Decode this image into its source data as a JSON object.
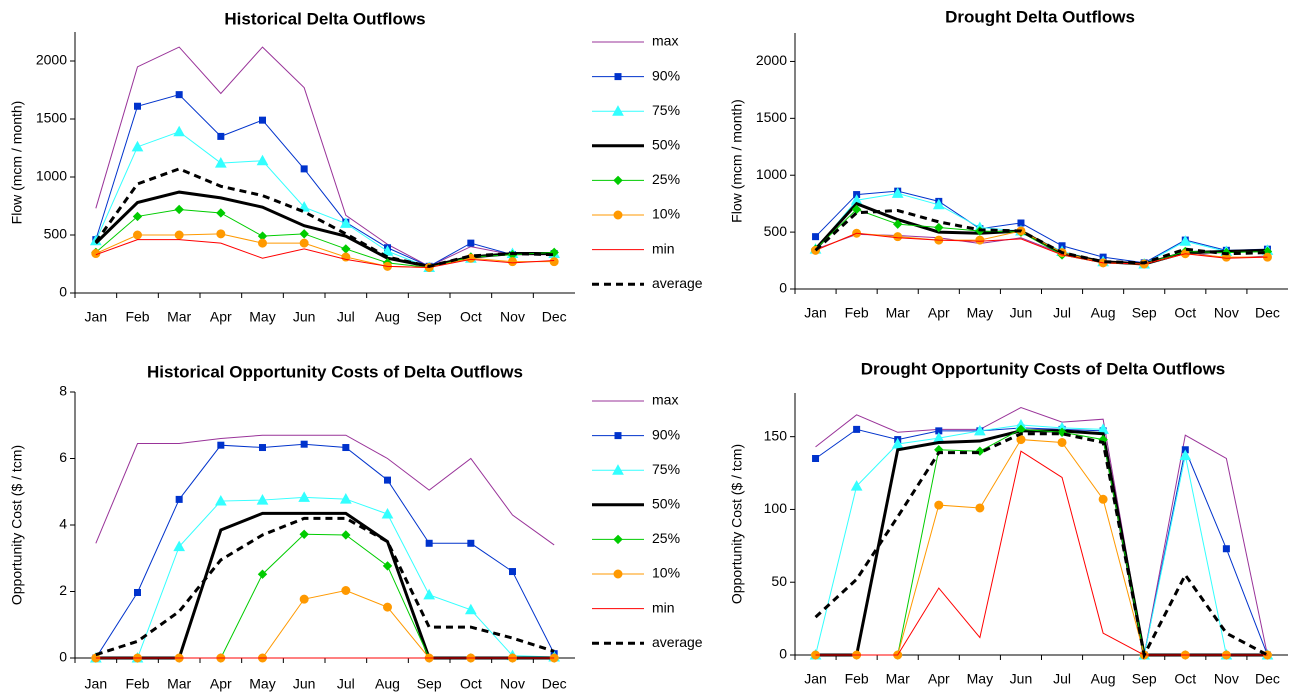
{
  "chart_data": [
    {
      "type": "line",
      "title": "Historical Delta Outflows",
      "y_label": "Flow (mcm / month)",
      "categories": [
        "Jan",
        "Feb",
        "Mar",
        "Apr",
        "May",
        "Jun",
        "Jul",
        "Aug",
        "Sep",
        "Oct",
        "Nov",
        "Dec"
      ],
      "ylim": [
        0,
        2250
      ],
      "yticks": [
        0,
        500,
        1000,
        1500,
        2000
      ],
      "legend": "right",
      "series": [
        {
          "name": "max",
          "color": "#993399",
          "width": 1,
          "values": [
            730,
            1950,
            2120,
            1720,
            2120,
            1770,
            670,
            420,
            230,
            400,
            330,
            330
          ]
        },
        {
          "name": "90%",
          "color": "#0033cc",
          "width": 1,
          "marker": "square",
          "values": [
            460,
            1610,
            1710,
            1350,
            1490,
            1070,
            610,
            390,
            230,
            430,
            330,
            340
          ]
        },
        {
          "name": "75%",
          "color": "#33ffff",
          "width": 1,
          "marker": "triangle",
          "values": [
            450,
            1260,
            1390,
            1120,
            1140,
            740,
            600,
            360,
            220,
            300,
            340,
            340
          ]
        },
        {
          "name": "50%",
          "color": "#000000",
          "width": 3,
          "values": [
            430,
            780,
            870,
            820,
            740,
            580,
            490,
            300,
            230,
            310,
            340,
            340
          ]
        },
        {
          "name": "25%",
          "color": "#00cc00",
          "width": 1,
          "marker": "diamond",
          "values": [
            350,
            660,
            720,
            690,
            490,
            510,
            380,
            260,
            220,
            310,
            330,
            350
          ]
        },
        {
          "name": "10%",
          "color": "#ff9900",
          "width": 1,
          "marker": "circle",
          "values": [
            340,
            500,
            500,
            510,
            430,
            430,
            310,
            230,
            220,
            300,
            270,
            270
          ]
        },
        {
          "name": "min",
          "color": "#ff0000",
          "width": 1,
          "values": [
            330,
            460,
            460,
            430,
            300,
            380,
            290,
            230,
            220,
            290,
            260,
            280
          ]
        },
        {
          "name": "average",
          "color": "#000000",
          "width": 3,
          "dash": true,
          "values": [
            440,
            940,
            1070,
            920,
            840,
            700,
            510,
            310,
            230,
            320,
            340,
            330
          ]
        }
      ]
    },
    {
      "type": "line",
      "title": "Drought Delta Outflows",
      "y_label": "Flow (mcm / month)",
      "categories": [
        "Jan",
        "Feb",
        "Mar",
        "Apr",
        "May",
        "Jun",
        "Jul",
        "Aug",
        "Sep",
        "Oct",
        "Nov",
        "Dec"
      ],
      "ylim": [
        0,
        2250
      ],
      "yticks": [
        0,
        500,
        1000,
        1500,
        2000
      ],
      "series": [
        {
          "color": "#993399",
          "width": 1,
          "values": [
            350,
            480,
            470,
            450,
            400,
            450,
            310,
            230,
            220,
            330,
            270,
            290
          ]
        },
        {
          "color": "#0033cc",
          "width": 1,
          "marker": "square",
          "values": [
            460,
            830,
            860,
            770,
            530,
            580,
            380,
            280,
            230,
            430,
            340,
            350
          ]
        },
        {
          "color": "#33ffff",
          "width": 1,
          "marker": "triangle",
          "values": [
            350,
            780,
            840,
            740,
            540,
            510,
            330,
            240,
            220,
            420,
            330,
            340
          ]
        },
        {
          "color": "#000000",
          "width": 3,
          "values": [
            350,
            750,
            610,
            500,
            490,
            510,
            310,
            240,
            220,
            320,
            330,
            340
          ]
        },
        {
          "color": "#00cc00",
          "width": 1,
          "marker": "diamond",
          "values": [
            350,
            700,
            570,
            540,
            510,
            500,
            300,
            230,
            220,
            330,
            320,
            330
          ]
        },
        {
          "color": "#ff9900",
          "width": 1,
          "marker": "circle",
          "values": [
            340,
            490,
            460,
            430,
            430,
            510,
            320,
            230,
            220,
            310,
            280,
            280
          ]
        },
        {
          "color": "#ff0000",
          "width": 1,
          "values": [
            340,
            490,
            450,
            430,
            420,
            440,
            300,
            230,
            220,
            310,
            270,
            280
          ]
        },
        {
          "color": "#000000",
          "width": 3,
          "dash": true,
          "values": [
            340,
            670,
            690,
            590,
            520,
            510,
            320,
            240,
            230,
            350,
            310,
            320
          ]
        }
      ]
    },
    {
      "type": "line",
      "title": "Historical Opportunity Costs of Delta Outflows",
      "y_label": "Opportunity Cost  ($ / tcm)",
      "categories": [
        "Jan",
        "Feb",
        "Mar",
        "Apr",
        "May",
        "Jun",
        "Jul",
        "Aug",
        "Sep",
        "Oct",
        "Nov",
        "Dec"
      ],
      "ylim": [
        0,
        8
      ],
      "yticks": [
        0,
        2,
        4,
        6,
        8
      ],
      "legend": "right",
      "series": [
        {
          "name": "max",
          "color": "#993399",
          "width": 1,
          "values": [
            3.45,
            6.45,
            6.45,
            6.6,
            6.7,
            6.7,
            6.7,
            6.0,
            5.05,
            6.0,
            4.3,
            3.4
          ]
        },
        {
          "name": "90%",
          "color": "#0033cc",
          "width": 1,
          "marker": "square",
          "values": [
            0,
            1.97,
            4.77,
            6.4,
            6.33,
            6.43,
            6.33,
            5.35,
            3.45,
            3.45,
            2.6,
            0.13
          ]
        },
        {
          "name": "75%",
          "color": "#33ffff",
          "width": 1,
          "marker": "triangle",
          "values": [
            0,
            0,
            3.35,
            4.72,
            4.75,
            4.83,
            4.78,
            4.33,
            1.9,
            1.45,
            0.07,
            0.03
          ]
        },
        {
          "name": "50%",
          "color": "#000000",
          "width": 3,
          "values": [
            0,
            0,
            0,
            3.85,
            4.35,
            4.35,
            4.35,
            3.5,
            0,
            0,
            0,
            0
          ]
        },
        {
          "name": "25%",
          "color": "#00cc00",
          "width": 1,
          "marker": "diamond",
          "values": [
            0,
            0,
            0,
            0,
            2.52,
            3.72,
            3.7,
            2.77,
            0,
            0,
            0,
            0
          ]
        },
        {
          "name": "10%",
          "color": "#ff9900",
          "width": 1,
          "marker": "circle",
          "values": [
            0,
            0,
            0,
            0,
            0,
            1.77,
            2.03,
            1.53,
            0,
            0,
            0,
            0
          ]
        },
        {
          "name": "min",
          "color": "#ff0000",
          "width": 1,
          "values": [
            0,
            0,
            0,
            0,
            0,
            0,
            0,
            0,
            0,
            0,
            0,
            0
          ]
        },
        {
          "name": "average",
          "color": "#000000",
          "width": 3,
          "dash": true,
          "values": [
            0.1,
            0.5,
            1.4,
            2.95,
            3.7,
            4.2,
            4.2,
            3.5,
            0.93,
            0.93,
            0.6,
            0.2
          ]
        }
      ]
    },
    {
      "type": "line",
      "title": "Drought Opportunity Costs of Delta Outflows",
      "y_label": "Opportunity Cost  ($ / tcm)",
      "categories": [
        "Jan",
        "Feb",
        "Mar",
        "Apr",
        "May",
        "Jun",
        "Jul",
        "Aug",
        "Sep",
        "Oct",
        "Nov",
        "Dec"
      ],
      "ylim": [
        0,
        180
      ],
      "yticks": [
        0,
        50,
        100,
        150
      ],
      "series": [
        {
          "color": "#993399",
          "width": 1,
          "values": [
            143,
            165,
            153,
            155,
            155,
            170,
            160,
            162,
            0,
            151,
            135,
            0
          ]
        },
        {
          "color": "#0033cc",
          "width": 1,
          "marker": "square",
          "values": [
            135,
            155,
            148,
            154,
            154,
            156,
            155,
            154,
            0,
            141,
            73,
            0
          ]
        },
        {
          "color": "#33ffff",
          "width": 1,
          "marker": "triangle",
          "values": [
            0,
            116,
            145,
            149,
            154,
            158,
            156,
            155,
            0,
            137,
            0,
            0
          ]
        },
        {
          "color": "#000000",
          "width": 3,
          "values": [
            0,
            0,
            141,
            146,
            147,
            154,
            154,
            152,
            0,
            0,
            0,
            0
          ]
        },
        {
          "color": "#00cc00",
          "width": 1,
          "marker": "diamond",
          "values": [
            0,
            0,
            0,
            141,
            140,
            155,
            153,
            148,
            0,
            0,
            0,
            0
          ]
        },
        {
          "color": "#ff9900",
          "width": 1,
          "marker": "circle",
          "values": [
            0,
            0,
            0,
            103,
            101,
            148,
            146,
            107,
            0,
            0,
            0,
            0
          ]
        },
        {
          "color": "#ff0000",
          "width": 1,
          "values": [
            0,
            0,
            0,
            46,
            12,
            140,
            122,
            15,
            0,
            0,
            0,
            0
          ]
        },
        {
          "color": "#000000",
          "width": 3,
          "dash": true,
          "values": [
            26,
            52,
            95,
            139,
            139,
            152,
            152,
            146,
            0,
            55,
            15,
            0
          ]
        }
      ]
    }
  ]
}
